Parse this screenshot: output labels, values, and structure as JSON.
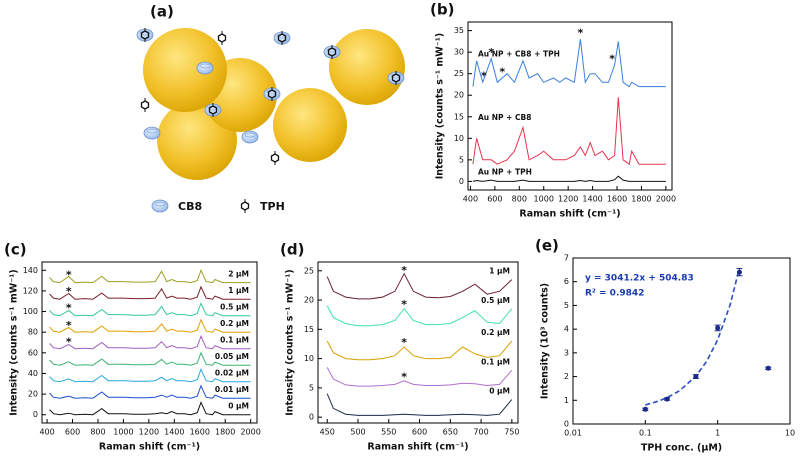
{
  "illustration": {
    "panel_label": "(a)",
    "legend": [
      "CB8",
      "TPH"
    ]
  },
  "chart_data": [
    {
      "type": "line",
      "panel_label": "(b)",
      "xlabel": "Raman shift (cm⁻¹)",
      "ylabel": "Intensity (counts s⁻¹ mW⁻¹)",
      "xlim": [
        380,
        2050
      ],
      "ylim": [
        -2,
        37
      ],
      "xticks": [
        400,
        600,
        800,
        1000,
        1200,
        1400,
        1600,
        1800,
        2000
      ],
      "yticks": [
        0,
        5,
        10,
        15,
        20,
        25,
        30,
        35
      ],
      "x": [
        420,
        450,
        500,
        570,
        620,
        700,
        760,
        830,
        880,
        950,
        1000,
        1080,
        1130,
        1180,
        1250,
        1300,
        1340,
        1380,
        1420,
        1480,
        1530,
        1580,
        1610,
        1650,
        1700,
        1720,
        1780,
        1850,
        1900,
        2000
      ],
      "series": [
        {
          "name": "Au NP + CB8 + TPH",
          "color": "#3d7fe0",
          "values": [
            22,
            28,
            23,
            28.5,
            23,
            25,
            23,
            28,
            24,
            25,
            23,
            24,
            23,
            24,
            23,
            33,
            23,
            25,
            25,
            23,
            23,
            27,
            32.5,
            23,
            22,
            23,
            22,
            22,
            22,
            22
          ]
        },
        {
          "name": "Au NP + CB8",
          "color": "#e8334f",
          "values": [
            4,
            10,
            5,
            5,
            4,
            5,
            7,
            12.5,
            5,
            6,
            7,
            5,
            5,
            5,
            6,
            8,
            6,
            9,
            6,
            7,
            5,
            6,
            19.5,
            5,
            4,
            7,
            4,
            4,
            4,
            4
          ]
        },
        {
          "name": "Au NP + TPH",
          "color": "#111111",
          "values": [
            0,
            0.2,
            0,
            0.3,
            0,
            0,
            0,
            0.3,
            0,
            0,
            0,
            0,
            0,
            0,
            0,
            0.2,
            0,
            0.2,
            0,
            0,
            0,
            0.4,
            1.2,
            0.3,
            0,
            0,
            0,
            0,
            0,
            0
          ]
        }
      ],
      "annotations": [
        {
          "text": "*",
          "x": 510,
          "y": 25
        },
        {
          "text": "*",
          "x": 570,
          "y": 30.5
        },
        {
          "text": "*",
          "x": 660,
          "y": 26
        },
        {
          "text": "*",
          "x": 1300,
          "y": 35
        },
        {
          "text": "*",
          "x": 1560,
          "y": 29
        }
      ]
    },
    {
      "type": "line",
      "panel_label": "(c)",
      "xlabel": "Raman shift (cm⁻¹)",
      "ylabel": "Intensity (counts s⁻¹ mW⁻¹)",
      "xlim": [
        360,
        2050
      ],
      "ylim": [
        -8,
        148
      ],
      "xticks": [
        400,
        600,
        800,
        1000,
        1200,
        1400,
        1600,
        1800,
        2000
      ],
      "yticks": [
        0,
        20,
        40,
        60,
        80,
        100,
        120,
        140
      ],
      "x": [
        420,
        450,
        500,
        570,
        620,
        700,
        760,
        830,
        880,
        950,
        1000,
        1080,
        1130,
        1180,
        1250,
        1300,
        1340,
        1380,
        1420,
        1480,
        1530,
        1580,
        1610,
        1650,
        1700,
        1720,
        1780,
        1850,
        1900,
        2000
      ],
      "series": [
        {
          "name": "2 µM",
          "color": "#9aa020",
          "values": [
            133,
            129,
            128,
            134,
            128,
            128.5,
            128,
            134,
            129,
            129,
            129,
            128.5,
            128.5,
            128.5,
            129,
            139,
            129,
            131,
            129,
            129,
            128,
            130,
            140,
            129,
            128,
            131,
            128,
            128,
            128,
            128
          ]
        },
        {
          "name": "1 µM",
          "color": "#7a1f2b",
          "values": [
            117,
            113,
            112,
            117.5,
            112,
            112.5,
            112,
            118,
            113,
            113,
            113,
            112.5,
            112.5,
            112.5,
            113,
            122,
            113,
            115,
            113,
            113,
            112,
            114,
            124,
            113,
            112,
            115,
            112,
            112,
            112,
            112
          ]
        },
        {
          "name": "0.5 µM",
          "color": "#36c99a",
          "values": [
            101,
            97,
            96,
            101,
            96,
            96.5,
            96,
            102,
            97,
            97,
            97,
            96.5,
            96.5,
            96.5,
            97,
            105,
            97,
            99,
            97,
            97,
            96,
            98,
            108,
            97,
            96,
            99,
            96,
            96,
            96,
            96
          ]
        },
        {
          "name": "0.2 µM",
          "color": "#e0a000",
          "values": [
            85,
            81,
            80,
            84.5,
            80,
            80.5,
            80,
            86,
            81,
            81,
            81,
            80.5,
            80.5,
            80.5,
            81,
            88,
            81,
            83,
            81,
            81,
            80,
            82,
            92,
            81,
            80,
            83,
            80,
            80,
            80,
            80
          ]
        },
        {
          "name": "0.1 µM",
          "color": "#a25ec0",
          "values": [
            69,
            65,
            64,
            68,
            64,
            64.5,
            64,
            70,
            65,
            65,
            65,
            64.5,
            64.5,
            64.5,
            65,
            70.8,
            65,
            67,
            65,
            65,
            64,
            66,
            76,
            65,
            64,
            67,
            64,
            64,
            64,
            64
          ]
        },
        {
          "name": "0.05 µM",
          "color": "#3cb371",
          "values": [
            53,
            49,
            48,
            51.3,
            48,
            48.5,
            48,
            54,
            49,
            49,
            49,
            48.5,
            48.5,
            48.5,
            49,
            53.6,
            49,
            51,
            49,
            49,
            48,
            50,
            60,
            49,
            48,
            51,
            48,
            48,
            48,
            48
          ]
        },
        {
          "name": "0.02 µM",
          "color": "#29a8e0",
          "values": [
            37,
            33,
            32,
            34.7,
            32,
            32.5,
            32,
            38,
            33,
            33,
            33,
            32.5,
            32.5,
            32.5,
            33,
            36.4,
            33,
            35,
            33,
            33,
            32,
            34,
            44,
            33,
            32,
            35,
            32,
            32,
            32,
            32
          ]
        },
        {
          "name": "0.01 µM",
          "color": "#1f4fd0",
          "values": [
            21,
            17,
            16,
            18,
            16,
            16.5,
            16,
            22,
            17,
            17,
            17,
            16.5,
            16.5,
            16.5,
            17,
            19,
            17,
            19,
            17,
            17,
            16,
            18,
            28,
            17,
            16,
            19,
            16,
            16,
            16,
            16
          ]
        },
        {
          "name": "0 µM",
          "color": "#111111",
          "values": [
            5,
            1,
            0,
            1.5,
            0,
            0.5,
            0,
            6,
            1,
            1,
            1,
            0.5,
            0.5,
            0.5,
            1,
            2,
            1,
            3,
            1,
            1,
            0,
            2,
            12,
            1,
            0,
            3,
            0,
            0,
            0,
            0
          ]
        }
      ],
      "annotations": [
        {
          "text": "*",
          "x": 570,
          "y": 138
        },
        {
          "text": "*",
          "x": 570,
          "y": 122
        },
        {
          "text": "*",
          "x": 570,
          "y": 106
        },
        {
          "text": "*",
          "x": 570,
          "y": 89
        },
        {
          "text": "*",
          "x": 570,
          "y": 73
        }
      ]
    },
    {
      "type": "line",
      "panel_label": "(d)",
      "xlabel": "Raman shift (cm⁻¹)",
      "ylabel": "Intensity (counts s⁻¹ mW⁻¹)",
      "xlim": [
        435,
        760
      ],
      "ylim": [
        -1,
        26.5
      ],
      "xticks": [
        450,
        500,
        550,
        600,
        650,
        700,
        750
      ],
      "yticks": [
        0,
        5,
        10,
        15,
        20,
        25
      ],
      "x": [
        450,
        460,
        480,
        500,
        520,
        540,
        560,
        575,
        590,
        610,
        630,
        650,
        670,
        690,
        710,
        730,
        750
      ],
      "series": [
        {
          "name": "1 µM",
          "color": "#6b1f2e",
          "values": [
            24,
            21.5,
            20.5,
            20.2,
            20.2,
            20.5,
            21.5,
            24.5,
            21.5,
            20.5,
            20.4,
            20.6,
            21.5,
            22.7,
            21,
            21.5,
            23.5
          ]
        },
        {
          "name": "0.5 µM",
          "color": "#3fe0b0",
          "values": [
            19,
            17,
            16,
            15.6,
            15.6,
            15.8,
            16.5,
            18.5,
            16.5,
            15.8,
            15.8,
            16,
            17,
            18.2,
            16.2,
            16,
            18.5
          ]
        },
        {
          "name": "0.2 µM",
          "color": "#d9a000",
          "values": [
            13,
            11,
            10,
            9.8,
            9.8,
            10,
            10.5,
            12,
            10.5,
            10,
            10,
            10.2,
            12,
            10.8,
            10.2,
            10.5,
            13
          ]
        },
        {
          "name": "0.1 µM",
          "color": "#b070d0",
          "values": [
            8.5,
            6.5,
            5.5,
            5.3,
            5.3,
            5.4,
            5.6,
            6.2,
            5.6,
            5.4,
            5.4,
            5.5,
            5.8,
            5.7,
            5.4,
            5.6,
            8
          ]
        },
        {
          "name": "0 µM",
          "color": "#1a2a4a",
          "values": [
            4,
            1.5,
            0.5,
            0.3,
            0.3,
            0.3,
            0.4,
            0.5,
            0.4,
            0.3,
            0.3,
            0.4,
            0.5,
            0.4,
            0.3,
            0.5,
            3
          ]
        }
      ],
      "annotations": [
        {
          "text": "*",
          "x": 575,
          "y": 25.5
        },
        {
          "text": "*",
          "x": 575,
          "y": 19.7
        },
        {
          "text": "*",
          "x": 575,
          "y": 13.2
        },
        {
          "text": "*",
          "x": 575,
          "y": 7.3
        }
      ]
    },
    {
      "type": "scatter",
      "panel_label": "(e)",
      "xlabel": "TPH conc. (µM)",
      "ylabel": "Intensity (10³ counts)",
      "xscale": "log",
      "xlim": [
        0.01,
        10
      ],
      "ylim": [
        0,
        7
      ],
      "xticks": [
        0.01,
        0.1,
        1,
        10
      ],
      "yticks": [
        0,
        1,
        2,
        3,
        4,
        5,
        6,
        7
      ],
      "x": [
        0.1,
        0.2,
        0.5,
        1,
        2,
        5
      ],
      "series": [
        {
          "color": "#1a2a8a",
          "values": [
            0.62,
            1.05,
            2.0,
            4.05,
            6.4,
            2.35
          ],
          "errors": [
            0.05,
            0.05,
            0.08,
            0.12,
            0.15,
            0.05
          ]
        }
      ],
      "fit": {
        "color": "#2a4fc0",
        "x": [
          0.1,
          0.15,
          0.2,
          0.3,
          0.5,
          0.7,
          1,
          1.5,
          2
        ],
        "values": [
          0.8,
          0.96,
          1.11,
          1.41,
          2.02,
          2.63,
          3.55,
          5.06,
          6.58
        ]
      },
      "equation": "y = 3041.2x + 504.83",
      "r_squared": "R² = 0.9842"
    }
  ]
}
